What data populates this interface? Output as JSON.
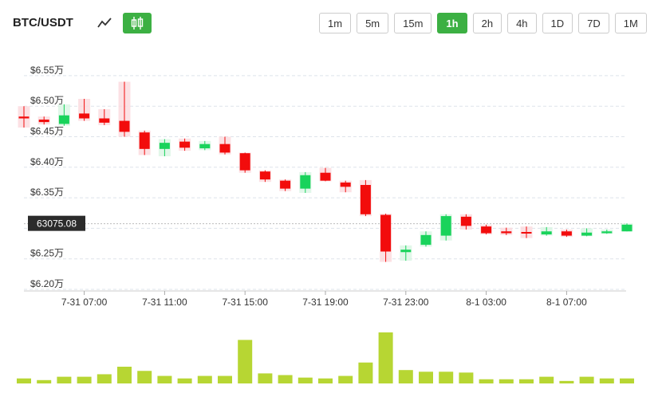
{
  "header": {
    "pair": "BTC/USDT",
    "line_icon": "line-chart-icon",
    "candle_icon": "candlestick-icon",
    "intervals": [
      "1m",
      "5m",
      "15m",
      "1h",
      "2h",
      "4h",
      "1D",
      "7D",
      "1M"
    ],
    "active_interval": "1h"
  },
  "colors": {
    "up": "#19d35b",
    "down": "#f20c0c",
    "volume": "#b7d633",
    "accent": "#3cb043"
  },
  "chart_data": {
    "type": "candlestick",
    "y_ticks": [
      "$6.55万",
      "$6.50万",
      "$6.45万",
      "$6.40万",
      "$6.35万",
      "$6.30万",
      "$6.25万",
      "$6.20万"
    ],
    "y_tick_values": [
      65500,
      65000,
      64500,
      64000,
      63500,
      63000,
      62500,
      62000
    ],
    "ylim": [
      62000,
      65500
    ],
    "x_ticks": [
      "7-31 07:00",
      "7-31 11:00",
      "7-31 15:00",
      "7-31 19:00",
      "7-31 23:00",
      "8-1 03:00",
      "8-1 07:00"
    ],
    "x_tick_index": [
      3,
      7,
      11,
      15,
      19,
      23,
      27
    ],
    "current_price": "63075.08",
    "current_price_value": 63075,
    "candles": [
      {
        "o": 64830,
        "c": 64800,
        "h": 65000,
        "l": 64650
      },
      {
        "o": 64780,
        "c": 64740,
        "h": 64830,
        "l": 64700
      },
      {
        "o": 64710,
        "c": 64850,
        "h": 65030,
        "l": 64680
      },
      {
        "o": 64880,
        "c": 64800,
        "h": 65120,
        "l": 64760
      },
      {
        "o": 64800,
        "c": 64730,
        "h": 64950,
        "l": 64690
      },
      {
        "o": 64760,
        "c": 64580,
        "h": 65400,
        "l": 64500
      },
      {
        "o": 64570,
        "c": 64300,
        "h": 64600,
        "l": 64200
      },
      {
        "o": 64300,
        "c": 64400,
        "h": 64460,
        "l": 64180
      },
      {
        "o": 64420,
        "c": 64320,
        "h": 64470,
        "l": 64270
      },
      {
        "o": 64310,
        "c": 64380,
        "h": 64430,
        "l": 64280
      },
      {
        "o": 64380,
        "c": 64240,
        "h": 64500,
        "l": 64210
      },
      {
        "o": 64230,
        "c": 63950,
        "h": 64240,
        "l": 63910
      },
      {
        "o": 63930,
        "c": 63800,
        "h": 63950,
        "l": 63760
      },
      {
        "o": 63780,
        "c": 63650,
        "h": 63800,
        "l": 63610
      },
      {
        "o": 63650,
        "c": 63870,
        "h": 63920,
        "l": 63580
      },
      {
        "o": 63910,
        "c": 63780,
        "h": 63990,
        "l": 63770
      },
      {
        "o": 63750,
        "c": 63680,
        "h": 63780,
        "l": 63590
      },
      {
        "o": 63710,
        "c": 63230,
        "h": 63790,
        "l": 63200
      },
      {
        "o": 63220,
        "c": 62620,
        "h": 63240,
        "l": 62450
      },
      {
        "o": 62610,
        "c": 62650,
        "h": 62720,
        "l": 62470
      },
      {
        "o": 62730,
        "c": 62890,
        "h": 62950,
        "l": 62700
      },
      {
        "o": 62880,
        "c": 63200,
        "h": 63230,
        "l": 62800
      },
      {
        "o": 63190,
        "c": 63040,
        "h": 63230,
        "l": 62980
      },
      {
        "o": 63030,
        "c": 62920,
        "h": 63060,
        "l": 62900
      },
      {
        "o": 62950,
        "c": 62920,
        "h": 63010,
        "l": 62890
      },
      {
        "o": 62940,
        "c": 62930,
        "h": 63030,
        "l": 62840
      },
      {
        "o": 62900,
        "c": 62950,
        "h": 63020,
        "l": 62880
      },
      {
        "o": 62950,
        "c": 62880,
        "h": 62980,
        "l": 62860
      },
      {
        "o": 62880,
        "c": 62930,
        "h": 63000,
        "l": 62870
      },
      {
        "o": 62920,
        "c": 62950,
        "h": 62980,
        "l": 62910
      },
      {
        "o": 62950,
        "c": 63060,
        "h": 63080,
        "l": 62950
      }
    ],
    "volumes": [
      6,
      4,
      8,
      8,
      11,
      20,
      15,
      9,
      6,
      9,
      9,
      52,
      12,
      10,
      7,
      6,
      9,
      25,
      61,
      16,
      14,
      14,
      13,
      5,
      5,
      5,
      8,
      3,
      8,
      6,
      6
    ]
  }
}
